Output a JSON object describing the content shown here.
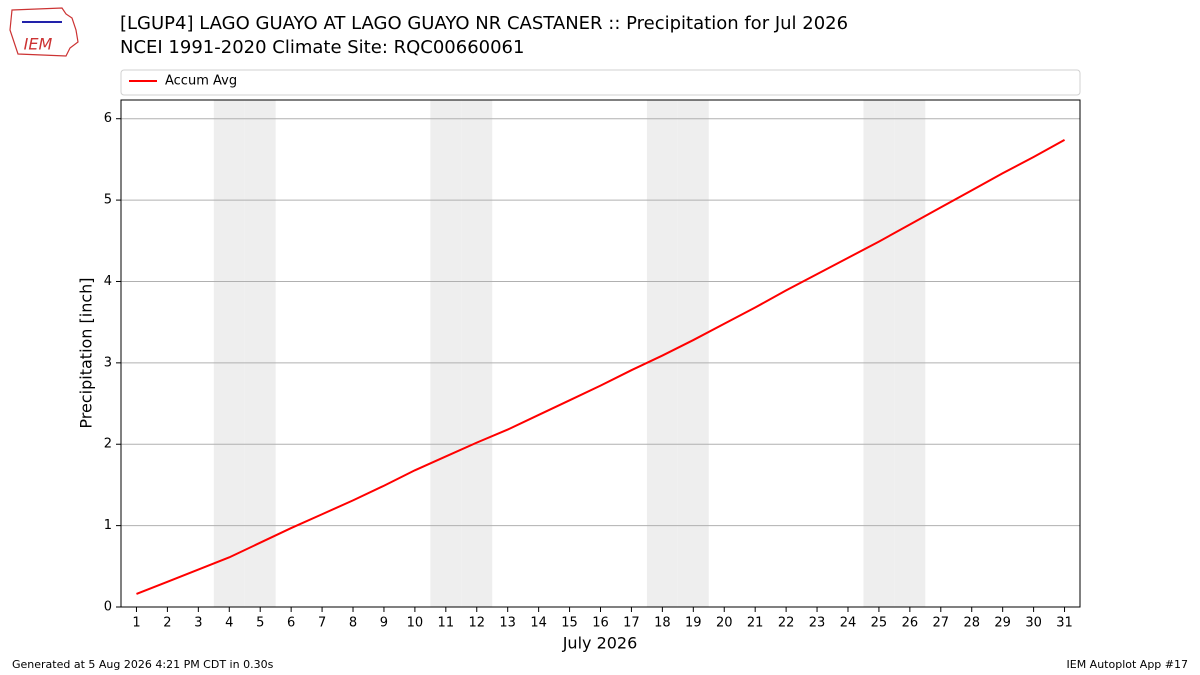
{
  "logo_text": "IEM",
  "chart_data": {
    "type": "line",
    "title": "[LGUP4] LAGO GUAYO  AT LAGO GUAYO NR CASTANER :: Precipitation for Jul 2026",
    "subtitle": "NCEI 1991-2020 Climate Site: RQC00660061",
    "x_label": "July 2026",
    "y_label": "Precipitation [inch]",
    "x": [
      1,
      2,
      3,
      4,
      5,
      6,
      7,
      8,
      9,
      10,
      11,
      12,
      13,
      14,
      15,
      16,
      17,
      18,
      19,
      20,
      21,
      22,
      23,
      24,
      25,
      26,
      27,
      28,
      29,
      30,
      31
    ],
    "series": [
      {
        "name": "Accum Avg",
        "color": "#ff0000",
        "values": [
          0.16,
          0.31,
          0.46,
          0.61,
          0.79,
          0.97,
          1.14,
          1.31,
          1.49,
          1.68,
          1.85,
          2.02,
          2.18,
          2.36,
          2.54,
          2.72,
          2.91,
          3.09,
          3.28,
          3.48,
          3.68,
          3.89,
          4.09,
          4.29,
          4.49,
          4.7,
          4.91,
          5.12,
          5.33,
          5.53,
          5.74
        ]
      }
    ],
    "weekend_days": [
      4,
      5,
      11,
      12,
      18,
      19,
      25,
      26
    ],
    "xlim": [
      0.5,
      31.5
    ],
    "xticks": [
      1,
      2,
      3,
      4,
      5,
      6,
      7,
      8,
      9,
      10,
      11,
      12,
      13,
      14,
      15,
      16,
      17,
      18,
      19,
      20,
      21,
      22,
      23,
      24,
      25,
      26,
      27,
      28,
      29,
      30,
      31
    ],
    "ylim": [
      0,
      6.23
    ],
    "yticks": [
      0,
      1,
      2,
      3,
      4,
      5,
      6
    ],
    "grid": true,
    "legend": "top"
  },
  "footer": {
    "left": "Generated at 5 Aug 2026 4:21 PM CDT in 0.30s",
    "right": "IEM Autoplot App #17"
  }
}
